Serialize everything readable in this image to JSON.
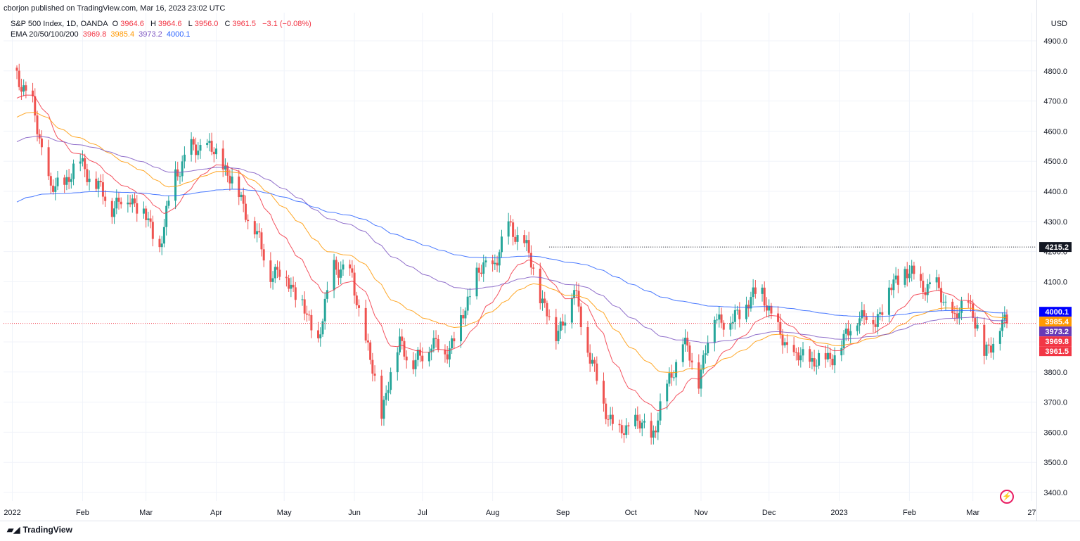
{
  "header": {
    "published": "cborjon published on TradingView.com, Mar 16, 2023 23:02 UTC",
    "symbol": "S&P 500 Index, 1D, OANDA",
    "ohlc": {
      "o_label": "O",
      "o": "3964.6",
      "h_label": "H",
      "h": "3964.6",
      "l_label": "L",
      "l": "3956.0",
      "c_label": "C",
      "c": "3961.5",
      "change": "−3.1 (−0.08%)"
    },
    "ema_label": "EMA 20/50/100/200",
    "ema_values": [
      "3969.8",
      "3985.4",
      "3973.2",
      "4000.1"
    ]
  },
  "footer": {
    "brand": "TradingView"
  },
  "colors": {
    "up": "#26a69a",
    "down": "#ef5350",
    "ema20": "#f23645",
    "ema50": "#ff9800",
    "ema100": "#7e57c2",
    "ema200": "#2962ff",
    "ema200_tag": "#0000ff",
    "ema50_tag": "#ff9800",
    "ema100_tag": "#673ab7",
    "ema20_tag": "#f23645",
    "price_tag": "#f23645",
    "level_tag": "#131722",
    "grid": "#f0f3fa",
    "axis_text": "#131722"
  },
  "chart_data": {
    "type": "line",
    "title": "S&P 500 Index, 1D, OANDA",
    "currency": "USD",
    "ylim": [
      3350,
      4980
    ],
    "y_ticks": [
      3400,
      3500,
      3600,
      3700,
      3800,
      3900,
      4000,
      4100,
      4200,
      4300,
      4400,
      4500,
      4600,
      4700,
      4800,
      4900
    ],
    "x_tick_labels": [
      "2022",
      "Feb",
      "Mar",
      "Apr",
      "May",
      "Jun",
      "Jul",
      "Aug",
      "Sep",
      "Oct",
      "Nov",
      "Dec",
      "2023",
      "Feb",
      "Mar",
      "27"
    ],
    "price_close_series": {
      "name": "S&P 500 Index (daily close, approx.)",
      "x": [
        "2022-01-03",
        "2022-01-10",
        "2022-01-18",
        "2022-01-24",
        "2022-01-31",
        "2022-02-07",
        "2022-02-14",
        "2022-02-22",
        "2022-02-28",
        "2022-03-07",
        "2022-03-14",
        "2022-03-21",
        "2022-03-28",
        "2022-04-04",
        "2022-04-11",
        "2022-04-18",
        "2022-04-25",
        "2022-05-02",
        "2022-05-09",
        "2022-05-16",
        "2022-05-23",
        "2022-05-31",
        "2022-06-06",
        "2022-06-13",
        "2022-06-21",
        "2022-06-27",
        "2022-07-05",
        "2022-07-11",
        "2022-07-18",
        "2022-07-25",
        "2022-08-01",
        "2022-08-08",
        "2022-08-15",
        "2022-08-22",
        "2022-08-29",
        "2022-09-06",
        "2022-09-12",
        "2022-09-19",
        "2022-09-26",
        "2022-10-03",
        "2022-10-10",
        "2022-10-17",
        "2022-10-24",
        "2022-10-31",
        "2022-11-07",
        "2022-11-14",
        "2022-11-21",
        "2022-11-28",
        "2022-12-05",
        "2022-12-12",
        "2022-12-19",
        "2022-12-27",
        "2023-01-03",
        "2023-01-09",
        "2023-01-17",
        "2023-01-23",
        "2023-01-30",
        "2023-02-06",
        "2023-02-13",
        "2023-02-21",
        "2023-02-27",
        "2023-03-06",
        "2023-03-13",
        "2023-03-16"
      ],
      "values": [
        4790,
        4680,
        4400,
        4430,
        4500,
        4420,
        4350,
        4380,
        4330,
        4210,
        4460,
        4540,
        4550,
        4490,
        4390,
        4270,
        4130,
        4120,
        4020,
        3900,
        4160,
        4110,
        3900,
        3670,
        3910,
        3820,
        3900,
        3860,
        3960,
        4130,
        4150,
        4280,
        4230,
        4060,
        3920,
        4070,
        3880,
        3690,
        3590,
        3640,
        3580,
        3750,
        3900,
        3780,
        3990,
        3960,
        4030,
        4070,
        3930,
        3850,
        3840,
        3840,
        3900,
        3990,
        3970,
        4070,
        4140,
        4090,
        4080,
        3970,
        4045,
        3860,
        3950,
        3961.5
      ]
    },
    "ema_series": [
      {
        "name": "EMA 20",
        "last": 3969.8
      },
      {
        "name": "EMA 50",
        "last": 3985.4
      },
      {
        "name": "EMA 100",
        "last": 3973.2
      },
      {
        "name": "EMA 200",
        "last": 4000.1
      }
    ],
    "price_labels": [
      {
        "label": "4215.2",
        "value": 4215.2,
        "kind": "level"
      },
      {
        "label": "4000.1",
        "value": 4000.1,
        "kind": "ema200"
      },
      {
        "label": "3985.4",
        "value": 3985.4,
        "kind": "ema50"
      },
      {
        "label": "3973.2",
        "value": 3973.2,
        "kind": "ema100"
      },
      {
        "label": "3969.8",
        "value": 3969.8,
        "kind": "ema20"
      },
      {
        "label": "3961.5",
        "value": 3961.5,
        "kind": "price"
      }
    ],
    "level_start_date": "2022-08-26",
    "grid": true
  }
}
